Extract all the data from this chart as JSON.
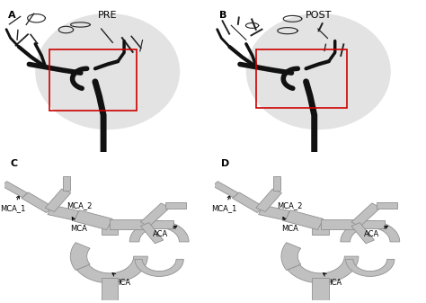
{
  "bg_color": "#bebebe",
  "angio_bg": "#b8b8b8",
  "vessel_fill": "#b4b4b4",
  "vessel_edge": "#808080",
  "white_bg": "#ffffff",
  "label_A": "A",
  "label_B": "B",
  "label_C": "C",
  "label_D": "D",
  "title_PRE": "PRE",
  "title_POST": "POST",
  "red_rect_color": "#cc0000",
  "MCA_1": "MCA_1",
  "MCA_2": "MCA_2",
  "MCA": "MCA",
  "ICA": "ICA",
  "ACA": "ACA",
  "fontsize_title": 8,
  "fontsize_label": 8,
  "fontsize_annot": 6
}
